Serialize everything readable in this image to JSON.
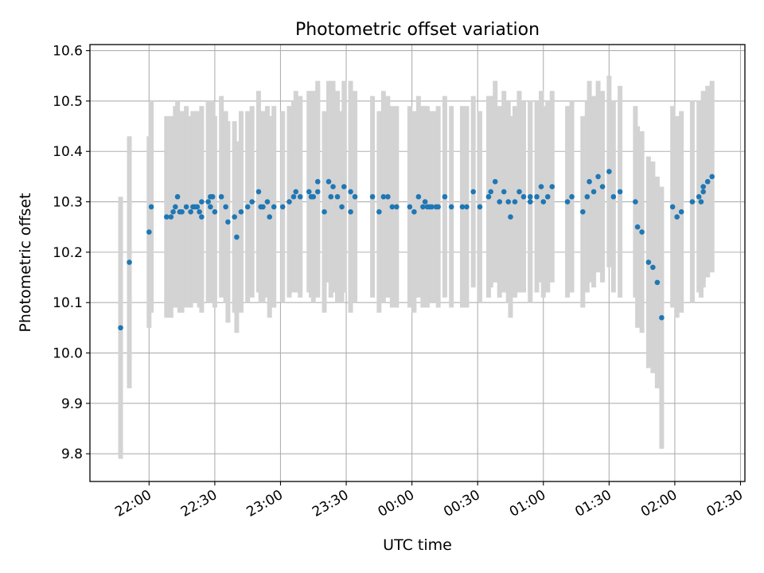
{
  "chart_data": {
    "type": "scatter",
    "title": "Photometric offset variation",
    "xlabel": "UTC time",
    "ylabel": "Photometric offset",
    "x_is_time": true,
    "xlim": [
      "21:33",
      "02:32"
    ],
    "ylim": [
      9.745,
      10.612
    ],
    "x_ticks": [
      "22:00",
      "22:30",
      "23:00",
      "23:30",
      "00:00",
      "00:30",
      "01:00",
      "01:30",
      "02:00",
      "02:30"
    ],
    "y_ticks": [
      "9.8",
      "9.9",
      "10.0",
      "10.1",
      "10.2",
      "10.3",
      "10.4",
      "10.5",
      "10.6"
    ],
    "y_tick_values": [
      9.8,
      9.9,
      10.0,
      10.1,
      10.2,
      10.3,
      10.4,
      10.5,
      10.6
    ],
    "grid": true,
    "marker_color": "#1f77b4",
    "errorbar_color": "#d3d3d3",
    "series": [
      {
        "x": [
          "21:47",
          "21:51",
          "22:00",
          "22:01",
          "22:08",
          "22:10",
          "22:11",
          "22:12",
          "22:13",
          "22:14",
          "22:15",
          "22:17",
          "22:19",
          "22:20",
          "22:21",
          "22:22",
          "22:23",
          "22:24",
          "22:24",
          "22:27",
          "22:28",
          "22:28",
          "22:29",
          "22:30",
          "22:33",
          "22:35",
          "22:36",
          "22:39",
          "22:40",
          "22:42",
          "22:45",
          "22:47",
          "22:50",
          "22:51",
          "22:52",
          "22:54",
          "22:55",
          "22:57",
          "23:01",
          "23:04",
          "23:06",
          "23:07",
          "23:09",
          "23:13",
          "23:14",
          "23:15",
          "23:17",
          "23:17",
          "23:20",
          "23:22",
          "23:23",
          "23:24",
          "23:26",
          "23:28",
          "23:29",
          "23:32",
          "23:32",
          "23:34",
          "23:42",
          "23:45",
          "23:47",
          "23:49",
          "23:51",
          "23:53",
          "23:59",
          "24:01",
          "24:03",
          "24:05",
          "24:06",
          "24:07",
          "24:08",
          "24:09",
          "24:11",
          "24:12",
          "24:15",
          "24:18",
          "24:23",
          "24:25",
          "24:28",
          "24:31",
          "24:35",
          "24:36",
          "24:38",
          "24:40",
          "24:42",
          "24:44",
          "24:45",
          "24:47",
          "24:49",
          "24:51",
          "24:54",
          "24:54",
          "24:57",
          "24:59",
          "25:00",
          "25:02",
          "25:04",
          "25:11",
          "25:13",
          "25:18",
          "25:20",
          "25:21",
          "25:23",
          "25:25",
          "25:27",
          "25:30",
          "25:32",
          "25:35",
          "25:42",
          "25:43",
          "25:45",
          "25:48",
          "25:50",
          "25:52",
          "25:54",
          "25:59",
          "26:01",
          "26:03",
          "26:08",
          "26:11",
          "26:12",
          "26:13",
          "26:13",
          "26:15",
          "26:17"
        ],
        "y": [
          10.05,
          10.18,
          10.24,
          10.29,
          10.27,
          10.27,
          10.28,
          10.29,
          10.31,
          10.28,
          10.28,
          10.29,
          10.28,
          10.29,
          10.29,
          10.29,
          10.28,
          10.27,
          10.3,
          10.3,
          10.29,
          10.31,
          10.31,
          10.28,
          10.31,
          10.29,
          10.26,
          10.27,
          10.23,
          10.28,
          10.29,
          10.3,
          10.32,
          10.29,
          10.29,
          10.3,
          10.27,
          10.29,
          10.29,
          10.3,
          10.31,
          10.32,
          10.31,
          10.32,
          10.31,
          10.31,
          10.34,
          10.32,
          10.28,
          10.34,
          10.31,
          10.33,
          10.31,
          10.29,
          10.33,
          10.32,
          10.28,
          10.31,
          10.31,
          10.28,
          10.31,
          10.31,
          10.29,
          10.29,
          10.29,
          10.28,
          10.31,
          10.29,
          10.3,
          10.29,
          10.29,
          10.29,
          10.29,
          10.29,
          10.31,
          10.29,
          10.29,
          10.29,
          10.32,
          10.29,
          10.31,
          10.32,
          10.34,
          10.3,
          10.32,
          10.3,
          10.27,
          10.3,
          10.32,
          10.31,
          10.31,
          10.3,
          10.31,
          10.33,
          10.3,
          10.31,
          10.33,
          10.3,
          10.31,
          10.28,
          10.31,
          10.34,
          10.32,
          10.35,
          10.33,
          10.36,
          10.31,
          10.32,
          10.3,
          10.25,
          10.24,
          10.18,
          10.17,
          10.14,
          10.07,
          10.29,
          10.27,
          10.28,
          10.3,
          10.31,
          10.3,
          10.32,
          10.33,
          10.34,
          10.35
        ],
        "yerr": [
          0.26,
          0.25,
          0.19,
          0.21,
          0.2,
          0.2,
          0.19,
          0.2,
          0.19,
          0.2,
          0.2,
          0.2,
          0.19,
          0.19,
          0.19,
          0.19,
          0.19,
          0.19,
          0.19,
          0.2,
          0.19,
          0.19,
          0.19,
          0.19,
          0.2,
          0.19,
          0.2,
          0.19,
          0.19,
          0.2,
          0.19,
          0.19,
          0.2,
          0.19,
          0.19,
          0.19,
          0.2,
          0.2,
          0.19,
          0.19,
          0.19,
          0.2,
          0.2,
          0.2,
          0.2,
          0.21,
          0.2,
          0.21,
          0.2,
          0.2,
          0.2,
          0.21,
          0.21,
          0.19,
          0.21,
          0.22,
          0.2,
          0.21,
          0.2,
          0.2,
          0.21,
          0.2,
          0.2,
          0.2,
          0.2,
          0.2,
          0.2,
          0.2,
          0.19,
          0.2,
          0.19,
          0.19,
          0.19,
          0.2,
          0.2,
          0.2,
          0.2,
          0.2,
          0.19,
          0.19,
          0.2,
          0.19,
          0.2,
          0.19,
          0.2,
          0.2,
          0.2,
          0.19,
          0.2,
          0.19,
          0.19,
          0.2,
          0.19,
          0.19,
          0.19,
          0.19,
          0.19,
          0.19,
          0.19,
          0.19,
          0.19,
          0.2,
          0.19,
          0.19,
          0.19,
          0.19,
          0.19,
          0.21,
          0.19,
          0.2,
          0.2,
          0.21,
          0.21,
          0.21,
          0.26,
          0.2,
          0.2,
          0.2,
          0.2,
          0.19,
          0.19,
          0.19,
          0.19,
          0.19,
          0.19
        ]
      }
    ]
  }
}
